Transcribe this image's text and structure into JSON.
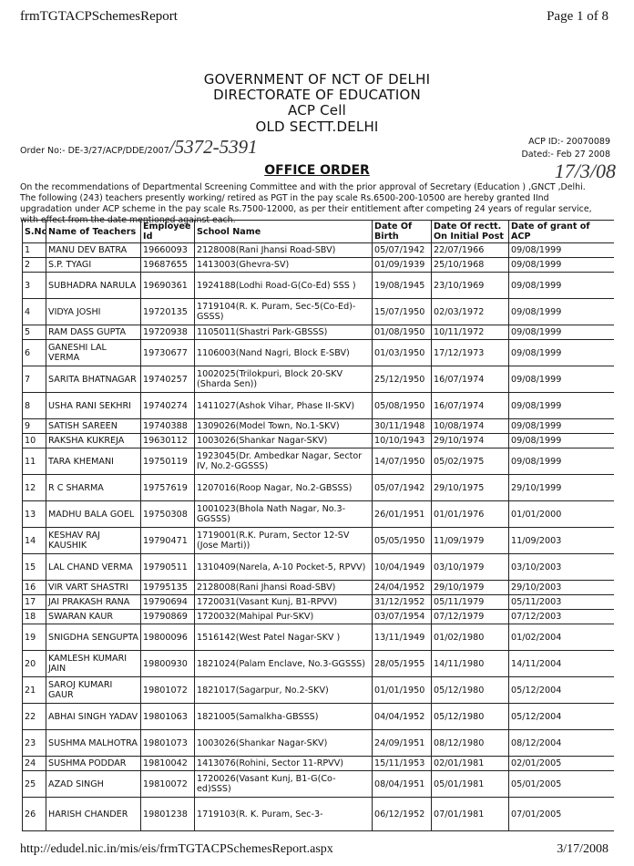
{
  "page_header": {
    "report_title": "frmTGTACPSchemesReport",
    "page_indicator": "Page 1 of 8"
  },
  "letterhead": {
    "line1": "GOVERNMENT OF NCT OF DELHI",
    "line2": "DIRECTORATE OF EDUCATION",
    "line3": "ACP Cell",
    "line4": "OLD SECTT.DELHI"
  },
  "order": {
    "order_no": "Order No:- DE-3/27/ACP/DDE/2007",
    "handwritten_no": "/5372-5391",
    "acp_id": "ACP ID:- 20070089",
    "dated": "Dated:- Feb 27 2008",
    "handwritten_date": "17/3/08",
    "title": "OFFICE ORDER",
    "body": "On the recommendations of Departmental Screening Committee and with the prior approval of Secretary (Education ) ,GNCT ,Delhi. The following (243) teachers presently working/ retired as PGT in the pay scale Rs.6500-200-10500 are hereby granted IInd upgradation under ACP scheme in the pay scale Rs.7500-12000, as per their entitlement after competing 24 years of regular service, with effect from the date mentioned against each."
  },
  "table": {
    "columns": [
      "S.No",
      "Name of Teachers",
      "Employee Id",
      "School Name",
      "Date Of Birth",
      "Date Of rectt. On Initial Post",
      "Date of grant of ACP"
    ],
    "rows": [
      [
        "1",
        "MANU DEV BATRA",
        "19660093",
        "2128008(Rani Jhansi Road-SBV)",
        "05/07/1942",
        "22/07/1966",
        "09/08/1999"
      ],
      [
        "2",
        "S.P. TYAGI",
        "19687655",
        "1413003(Ghevra-SV)",
        "01/09/1939",
        "25/10/1968",
        "09/08/1999"
      ],
      [
        "3",
        "SUBHADRA NARULA",
        "19690361",
        "1924188(Lodhi Road-G(Co-Ed) SSS )",
        "19/08/1945",
        "23/10/1969",
        "09/08/1999"
      ],
      [
        "4",
        "VIDYA JOSHI",
        "19720135",
        "1719104(R. K. Puram, Sec-5(Co-Ed)-GSSS)",
        "15/07/1950",
        "02/03/1972",
        "09/08/1999"
      ],
      [
        "5",
        "RAM DASS GUPTA",
        "19720938",
        "1105011(Shastri Park-GBSSS)",
        "01/08/1950",
        "10/11/1972",
        "09/08/1999"
      ],
      [
        "6",
        "GANESHI LAL VERMA",
        "19730677",
        "1106003(Nand Nagri, Block E-SBV)",
        "01/03/1950",
        "17/12/1973",
        "09/08/1999"
      ],
      [
        "7",
        "SARITA BHATNAGAR",
        "19740257",
        "1002025(Trilokpuri, Block 20-SKV (Sharda Sen))",
        "25/12/1950",
        "16/07/1974",
        "09/08/1999"
      ],
      [
        "8",
        "USHA RANI SEKHRI",
        "19740274",
        "1411027(Ashok Vihar, Phase II-SKV)",
        "05/08/1950",
        "16/07/1974",
        "09/08/1999"
      ],
      [
        "9",
        "SATISH SAREEN",
        "19740388",
        "1309026(Model Town, No.1-SKV)",
        "30/11/1948",
        "10/08/1974",
        "09/08/1999"
      ],
      [
        "10",
        "RAKSHA KUKREJA",
        "19630112",
        "1003026(Shankar Nagar-SKV)",
        "10/10/1943",
        "29/10/1974",
        "09/08/1999"
      ],
      [
        "11",
        "TARA KHEMANI",
        "19750119",
        "1923045(Dr. Ambedkar Nagar, Sector IV, No.2-GGSSS)",
        "14/07/1950",
        "05/02/1975",
        "09/08/1999"
      ],
      [
        "12",
        "R C SHARMA",
        "19757619",
        "1207016(Roop Nagar, No.2-GBSSS)",
        "05/07/1942",
        "29/10/1975",
        "29/10/1999"
      ],
      [
        "13",
        "MADHU BALA GOEL",
        "19750308",
        "1001023(Bhola Nath Nagar, No.3-GGSSS)",
        "26/01/1951",
        "01/01/1976",
        "01/01/2000"
      ],
      [
        "14",
        "KESHAV RAJ KAUSHIK",
        "19790471",
        "1719001(R.K. Puram, Sector 12-SV (Jose Marti))",
        "05/05/1950",
        "11/09/1979",
        "11/09/2003"
      ],
      [
        "15",
        "LAL CHAND VERMA",
        "19790511",
        "1310409(Narela, A-10 Pocket-5, RPVV)",
        "10/04/1949",
        "03/10/1979",
        "03/10/2003"
      ],
      [
        "16",
        "VIR VART SHASTRI",
        "19795135",
        "2128008(Rani Jhansi Road-SBV)",
        "24/04/1952",
        "29/10/1979",
        "29/10/2003"
      ],
      [
        "17",
        "JAI PRAKASH RANA",
        "19790694",
        "1720031(Vasant Kunj, B1-RPVV)",
        "31/12/1952",
        "05/11/1979",
        "05/11/2003"
      ],
      [
        "18",
        "SWARAN KAUR",
        "19790869",
        "1720032(Mahipal Pur-SKV)",
        "03/07/1954",
        "07/12/1979",
        "07/12/2003"
      ],
      [
        "19",
        "SNIGDHA SENGUPTA",
        "19800096",
        "1516142(West Patel Nagar-SKV )",
        "13/11/1949",
        "01/02/1980",
        "01/02/2004"
      ],
      [
        "20",
        "KAMLESH KUMARI JAIN",
        "19800930",
        "1821024(Palam Enclave, No.3-GGSSS)",
        "28/05/1955",
        "14/11/1980",
        "14/11/2004"
      ],
      [
        "21",
        "SAROJ KUMARI GAUR",
        "19801072",
        "1821017(Sagarpur, No.2-SKV)",
        "01/01/1950",
        "05/12/1980",
        "05/12/2004"
      ],
      [
        "22",
        "ABHAI SINGH YADAV",
        "19801063",
        "1821005(Samalkha-GBSSS)",
        "04/04/1952",
        "05/12/1980",
        "05/12/2004"
      ],
      [
        "23",
        "SUSHMA MALHOTRA",
        "19801073",
        "1003026(Shankar Nagar-SKV)",
        "24/09/1951",
        "08/12/1980",
        "08/12/2004"
      ],
      [
        "24",
        "SUSHMA PODDAR",
        "19810042",
        "1413076(Rohini, Sector 11-RPVV)",
        "15/11/1953",
        "02/01/1981",
        "02/01/2005"
      ],
      [
        "25",
        "AZAD SINGH",
        "19810072",
        "1720026(Vasant Kunj, B1-G(Co-ed)SSS)",
        "08/04/1951",
        "05/01/1981",
        "05/01/2005"
      ],
      [
        "26",
        "HARISH CHANDER",
        "19801238",
        "1719103(R. K. Puram, Sec-3-",
        "06/12/1952",
        "07/01/1981",
        "07/01/2005"
      ]
    ],
    "row_heights": [
      "s",
      "s",
      "d",
      "d",
      "s",
      "d",
      "d",
      "d",
      "s",
      "s",
      "d",
      "d",
      "d",
      "d",
      "d",
      "s",
      "s",
      "s",
      "d",
      "d",
      "d",
      "d",
      "d",
      "s",
      "d",
      "l"
    ]
  },
  "page_footer": {
    "url": "http://edudel.nic.in/mis/eis/frmTGTACPSchemesReport.aspx",
    "date": "3/17/2008"
  }
}
